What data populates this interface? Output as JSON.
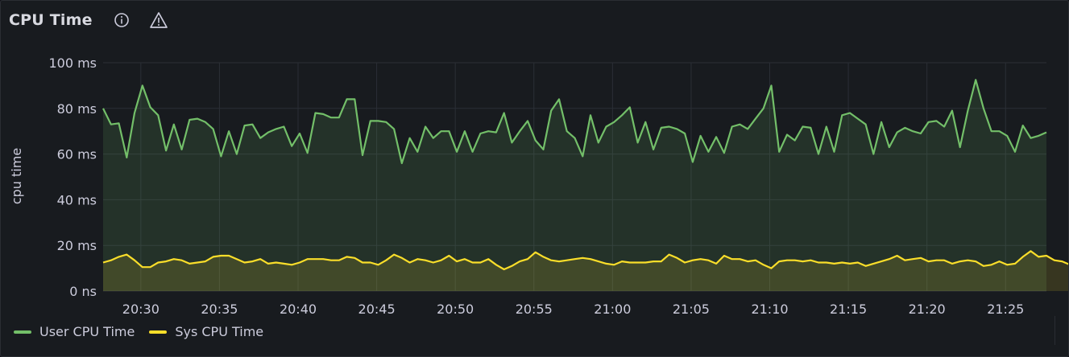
{
  "panel": {
    "title": "CPU Time",
    "icons": {
      "info": "info-icon",
      "warning": "warning-icon"
    }
  },
  "colors": {
    "user": "#73bf69",
    "sys": "#fade2a",
    "grid": "#2b2f36",
    "text": "#ccccdc"
  },
  "chart_data": {
    "type": "area",
    "ylabel": "cpu time",
    "ylim": [
      0,
      100
    ],
    "y_ticks": [
      {
        "value": 0,
        "label": "0 ns"
      },
      {
        "value": 20,
        "label": "20 ms"
      },
      {
        "value": 40,
        "label": "40 ms"
      },
      {
        "value": 60,
        "label": "60 ms"
      },
      {
        "value": 80,
        "label": "80 ms"
      },
      {
        "value": 100,
        "label": "100 ms"
      }
    ],
    "xlim": [
      "20:27:36",
      "21:27:36"
    ],
    "x_ticks": [
      "20:30",
      "20:35",
      "20:40",
      "20:45",
      "20:50",
      "20:55",
      "21:00",
      "21:05",
      "21:10",
      "21:15",
      "21:20",
      "21:25"
    ],
    "x_start": "20:27:36",
    "x_step": "30s",
    "grid": true,
    "legend_position": "bottom-left",
    "series": [
      {
        "name": "User CPU Time",
        "color": "#73bf69",
        "values": [
          80,
          73,
          73.5,
          58.5,
          78,
          90,
          80.5,
          77,
          61.5,
          73,
          62,
          75,
          75.5,
          74,
          71,
          59,
          70,
          60,
          72.5,
          73,
          67,
          69.5,
          71,
          72,
          63.5,
          69,
          60.5,
          78,
          77.5,
          76,
          76,
          84,
          84,
          59.5,
          74.5,
          74.5,
          74,
          71,
          56,
          67,
          61,
          72,
          67,
          70,
          70,
          61,
          70,
          61,
          69,
          70,
          69.5,
          78,
          65,
          70,
          74.5,
          66,
          62,
          79,
          84,
          70,
          67,
          59,
          77,
          65,
          72,
          74,
          77,
          80.5,
          65,
          74,
          62,
          71.5,
          72,
          71,
          69,
          56.5,
          68,
          61,
          67.5,
          60.5,
          72,
          73,
          71,
          75.5,
          80,
          90,
          61,
          68.5,
          66,
          72,
          71.5,
          60,
          72,
          61,
          77,
          78,
          75.5,
          73,
          60,
          74,
          63,
          69.5,
          71.5,
          70,
          69,
          74,
          74.5,
          72,
          79,
          63,
          79,
          92.5,
          80,
          70,
          70,
          68,
          61,
          72.5,
          67,
          68,
          69.5
        ]
      },
      {
        "name": "Sys CPU Time",
        "color": "#fade2a",
        "values": [
          12.5,
          13.5,
          15,
          16,
          13.5,
          10.5,
          10.5,
          12.5,
          13,
          14,
          13.5,
          12,
          12.5,
          13,
          15,
          15.5,
          15.5,
          14,
          12.5,
          13,
          14,
          12,
          12.5,
          12,
          11.5,
          12.5,
          14,
          14,
          14,
          13.5,
          13.5,
          15,
          14.5,
          12.5,
          12.5,
          11.5,
          13.5,
          16,
          14.5,
          12.5,
          14,
          13.5,
          12.5,
          13.5,
          15.5,
          13,
          14,
          12.5,
          12.5,
          14,
          11.5,
          9.5,
          11,
          13,
          14,
          17,
          15,
          13.5,
          13,
          13.5,
          14,
          14.5,
          14,
          13,
          12,
          11.5,
          13,
          12.5,
          12.5,
          12.5,
          13,
          13,
          16,
          14.5,
          12.5,
          13.5,
          14,
          13.5,
          12,
          15.5,
          14,
          14,
          13,
          13.5,
          11.5,
          10,
          13,
          13.5,
          13.5,
          13,
          13.5,
          12.5,
          12.5,
          12,
          12.5,
          12,
          12.5,
          11,
          12,
          13,
          14,
          15.5,
          13.5,
          14,
          14.5,
          13,
          13.5,
          13.5,
          12,
          13,
          13.5,
          13,
          11,
          11.5,
          13,
          11.5,
          12,
          15,
          17.5,
          15,
          15.5,
          13.5,
          13,
          11.5
        ]
      }
    ]
  }
}
